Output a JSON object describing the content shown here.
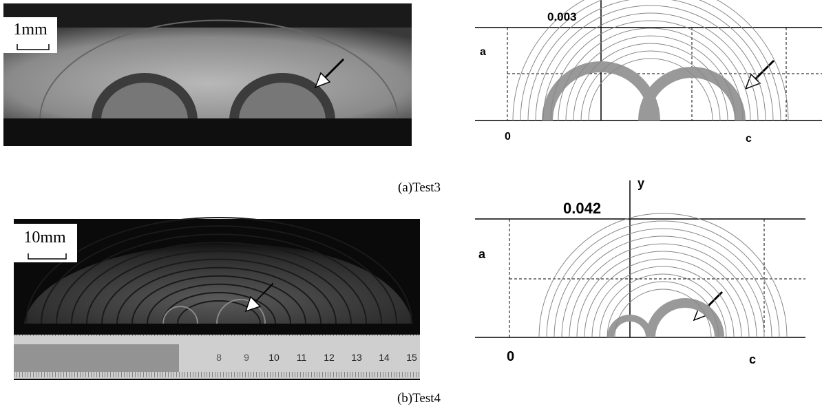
{
  "panels": [
    {
      "photo": {
        "scale_label": "1mm"
      },
      "diagram": {
        "y_value": "0.003",
        "a_label": "a",
        "origin_label": "0",
        "c_label": "c"
      },
      "caption": "(a)Test3"
    },
    {
      "photo": {
        "scale_label": "10mm",
        "ruler_numbers": [
          "8",
          "9",
          "10",
          "11",
          "12",
          "13",
          "14",
          "15"
        ]
      },
      "diagram": {
        "y_value": "0.042",
        "y_axis_label": "y",
        "a_label": "a",
        "origin_label": "0",
        "c_label": "c"
      },
      "caption": "(b)Test4"
    }
  ]
}
